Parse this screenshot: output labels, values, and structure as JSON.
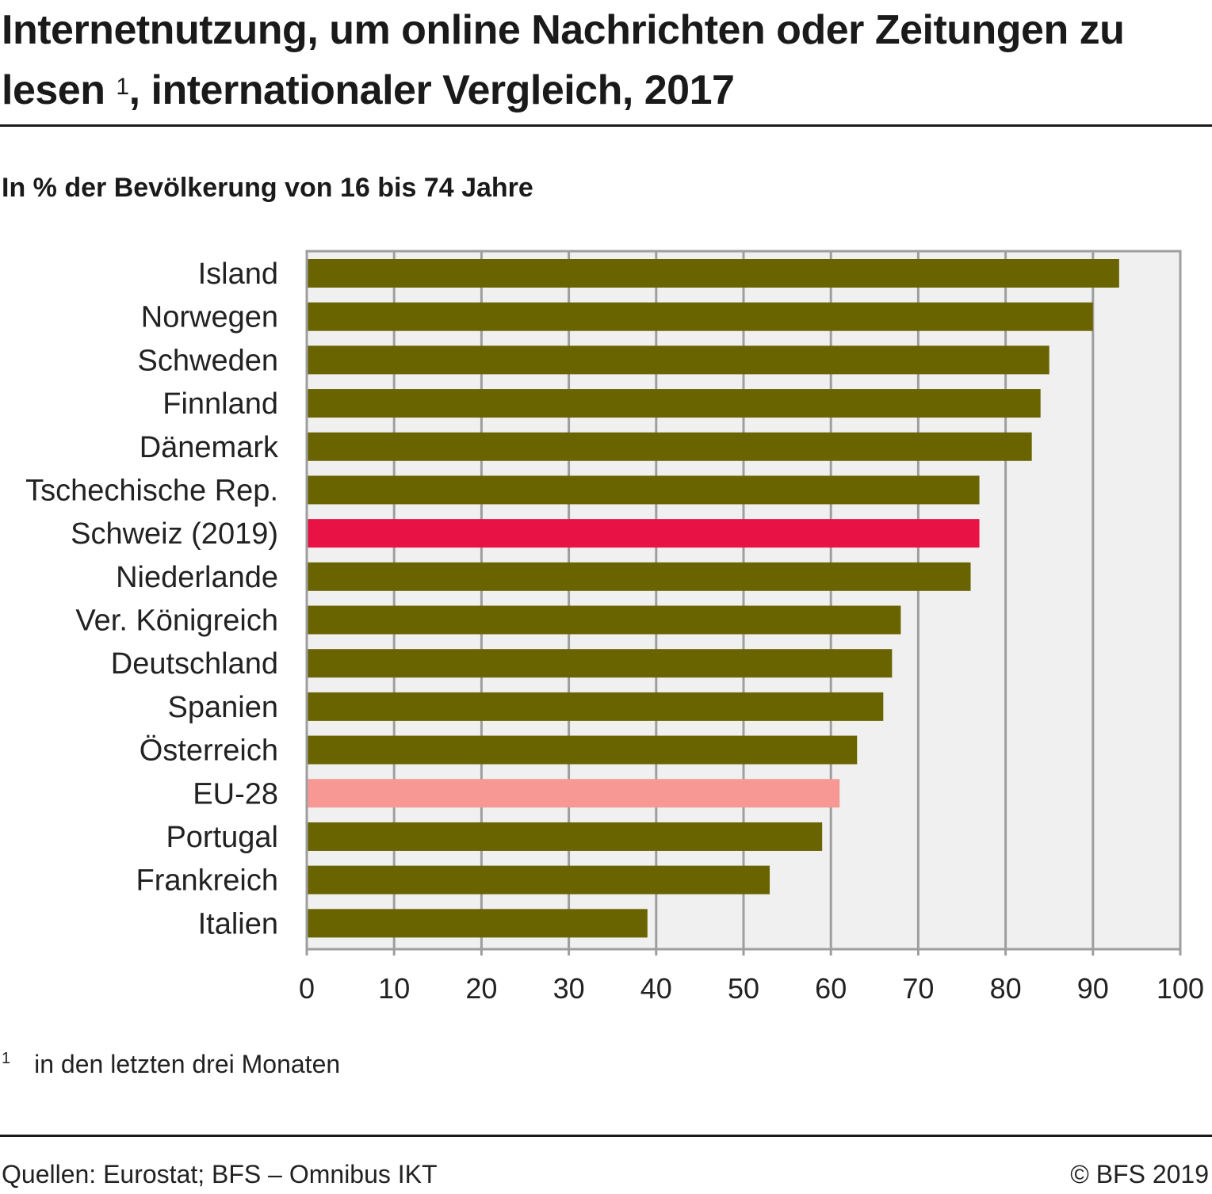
{
  "header": {
    "title_part1": "Internetnutzung, um online Nachrichten oder Zeitungen zu lesen ",
    "title_footnote_mark": "1",
    "title_part2": ", internationaler Vergleich, 2017",
    "subtitle": "In % der Bevölkerung von 16 bis 74 Jahre"
  },
  "footer": {
    "footnote_mark": "1",
    "footnote_text": "in den letzten drei Monaten",
    "source": "Quellen: Eurostat; BFS – Omnibus IKT",
    "copyright": "© BFS 2019"
  },
  "colors": {
    "default_bar": "#6a6400",
    "highlight_switzerland": "#e81244",
    "highlight_eu": "#f79894",
    "plot_background": "#f0f0f0",
    "gridline": "#9e9e9e"
  },
  "chart_data": {
    "type": "bar",
    "orientation": "horizontal",
    "title": "Internetnutzung, um online Nachrichten oder Zeitungen zu lesen 1, internationaler Vergleich, 2017",
    "subtitle": "In % der Bevölkerung von 16 bis 74 Jahre",
    "xlabel": "",
    "ylabel": "",
    "xlim": [
      0,
      100
    ],
    "x_ticks": [
      0,
      10,
      20,
      30,
      40,
      50,
      60,
      70,
      80,
      90,
      100
    ],
    "grid": true,
    "categories": [
      "Island",
      "Norwegen",
      "Schweden",
      "Finnland",
      "Dänemark",
      "Tschechische Rep.",
      "Schweiz (2019)",
      "Niederlande",
      "Ver. Königreich",
      "Deutschland",
      "Spanien",
      "Österreich",
      "EU-28",
      "Portugal",
      "Frankreich",
      "Italien"
    ],
    "values": [
      93,
      90,
      85,
      84,
      83,
      77,
      77,
      76,
      68,
      67,
      66,
      63,
      61,
      59,
      53,
      39
    ],
    "bar_highlight": [
      "default",
      "default",
      "default",
      "default",
      "default",
      "default",
      "switzerland",
      "default",
      "default",
      "default",
      "default",
      "default",
      "eu",
      "default",
      "default",
      "default"
    ]
  }
}
